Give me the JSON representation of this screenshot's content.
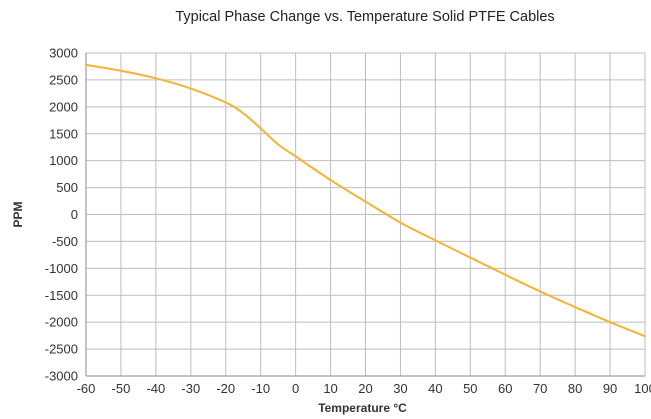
{
  "chart_data": {
    "type": "line",
    "title": "Typical Phase Change vs. Temperature Solid PTFE Cables",
    "xlabel": "Temperature °C",
    "ylabel": "PPM",
    "xlim": [
      -60,
      100
    ],
    "ylim": [
      -3000,
      3000
    ],
    "x_ticks": [
      -60,
      -50,
      -40,
      -30,
      -20,
      -10,
      0,
      10,
      20,
      30,
      40,
      50,
      60,
      70,
      80,
      90,
      100
    ],
    "x_tick_labels": [
      "-60",
      "-50",
      "-40",
      "-30",
      "-20",
      "-10",
      "0",
      "10",
      "20",
      "30",
      "40",
      "50",
      "60",
      "70",
      "80",
      "90",
      "100"
    ],
    "y_ticks": [
      3000,
      2500,
      2000,
      1500,
      1000,
      500,
      0,
      -500,
      -1000,
      -1500,
      -2000,
      -2500,
      -3000
    ],
    "y_tick_labels": [
      "3000",
      "2500",
      "2000",
      "1500",
      "1000",
      "500",
      "0",
      "-500",
      "-1000",
      "-1500",
      "-2000",
      "-2500",
      "-3000"
    ],
    "grid": true,
    "legend": "none",
    "series": [
      {
        "color": "#f5b335",
        "x": [
          -60,
          -50,
          -40,
          -30,
          -20,
          -15,
          -10,
          -5,
          0,
          10,
          20,
          30,
          40,
          50,
          60,
          70,
          80,
          90,
          100
        ],
        "y": [
          2780,
          2670,
          2530,
          2340,
          2080,
          1880,
          1600,
          1300,
          1080,
          640,
          240,
          -150,
          -480,
          -800,
          -1120,
          -1430,
          -1720,
          -2000,
          -2260
        ]
      }
    ],
    "colors": {
      "line": "#f5b335",
      "grid": "#bdbdbd",
      "axis": "#9e9e9e",
      "text": "#333333"
    }
  }
}
